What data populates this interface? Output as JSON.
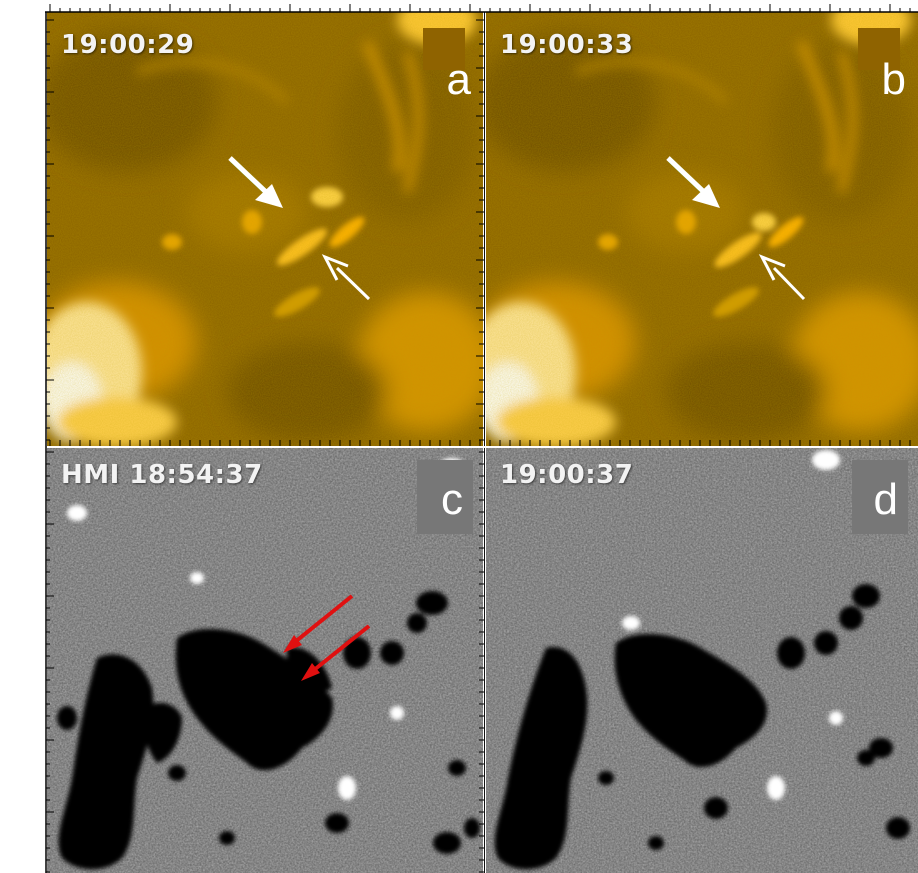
{
  "panels": [
    {
      "id": "a",
      "timestamp": "19:00:29",
      "letter": "a"
    },
    {
      "id": "b",
      "timestamp": "19:00:33",
      "letter": "b"
    },
    {
      "id": "c",
      "timestamp": "HMI  18:54:37",
      "letter": "c"
    },
    {
      "id": "d",
      "timestamp": "19:00:37",
      "letter": "d"
    }
  ],
  "colors": {
    "euv_base": "#8a6200",
    "euv_bright": "#ffb400",
    "magnetogram_grey": "#8c8c8c",
    "arrow_white": "#ffffff",
    "arrow_green": "#2fb020",
    "arrow_red": "#e01010"
  }
}
